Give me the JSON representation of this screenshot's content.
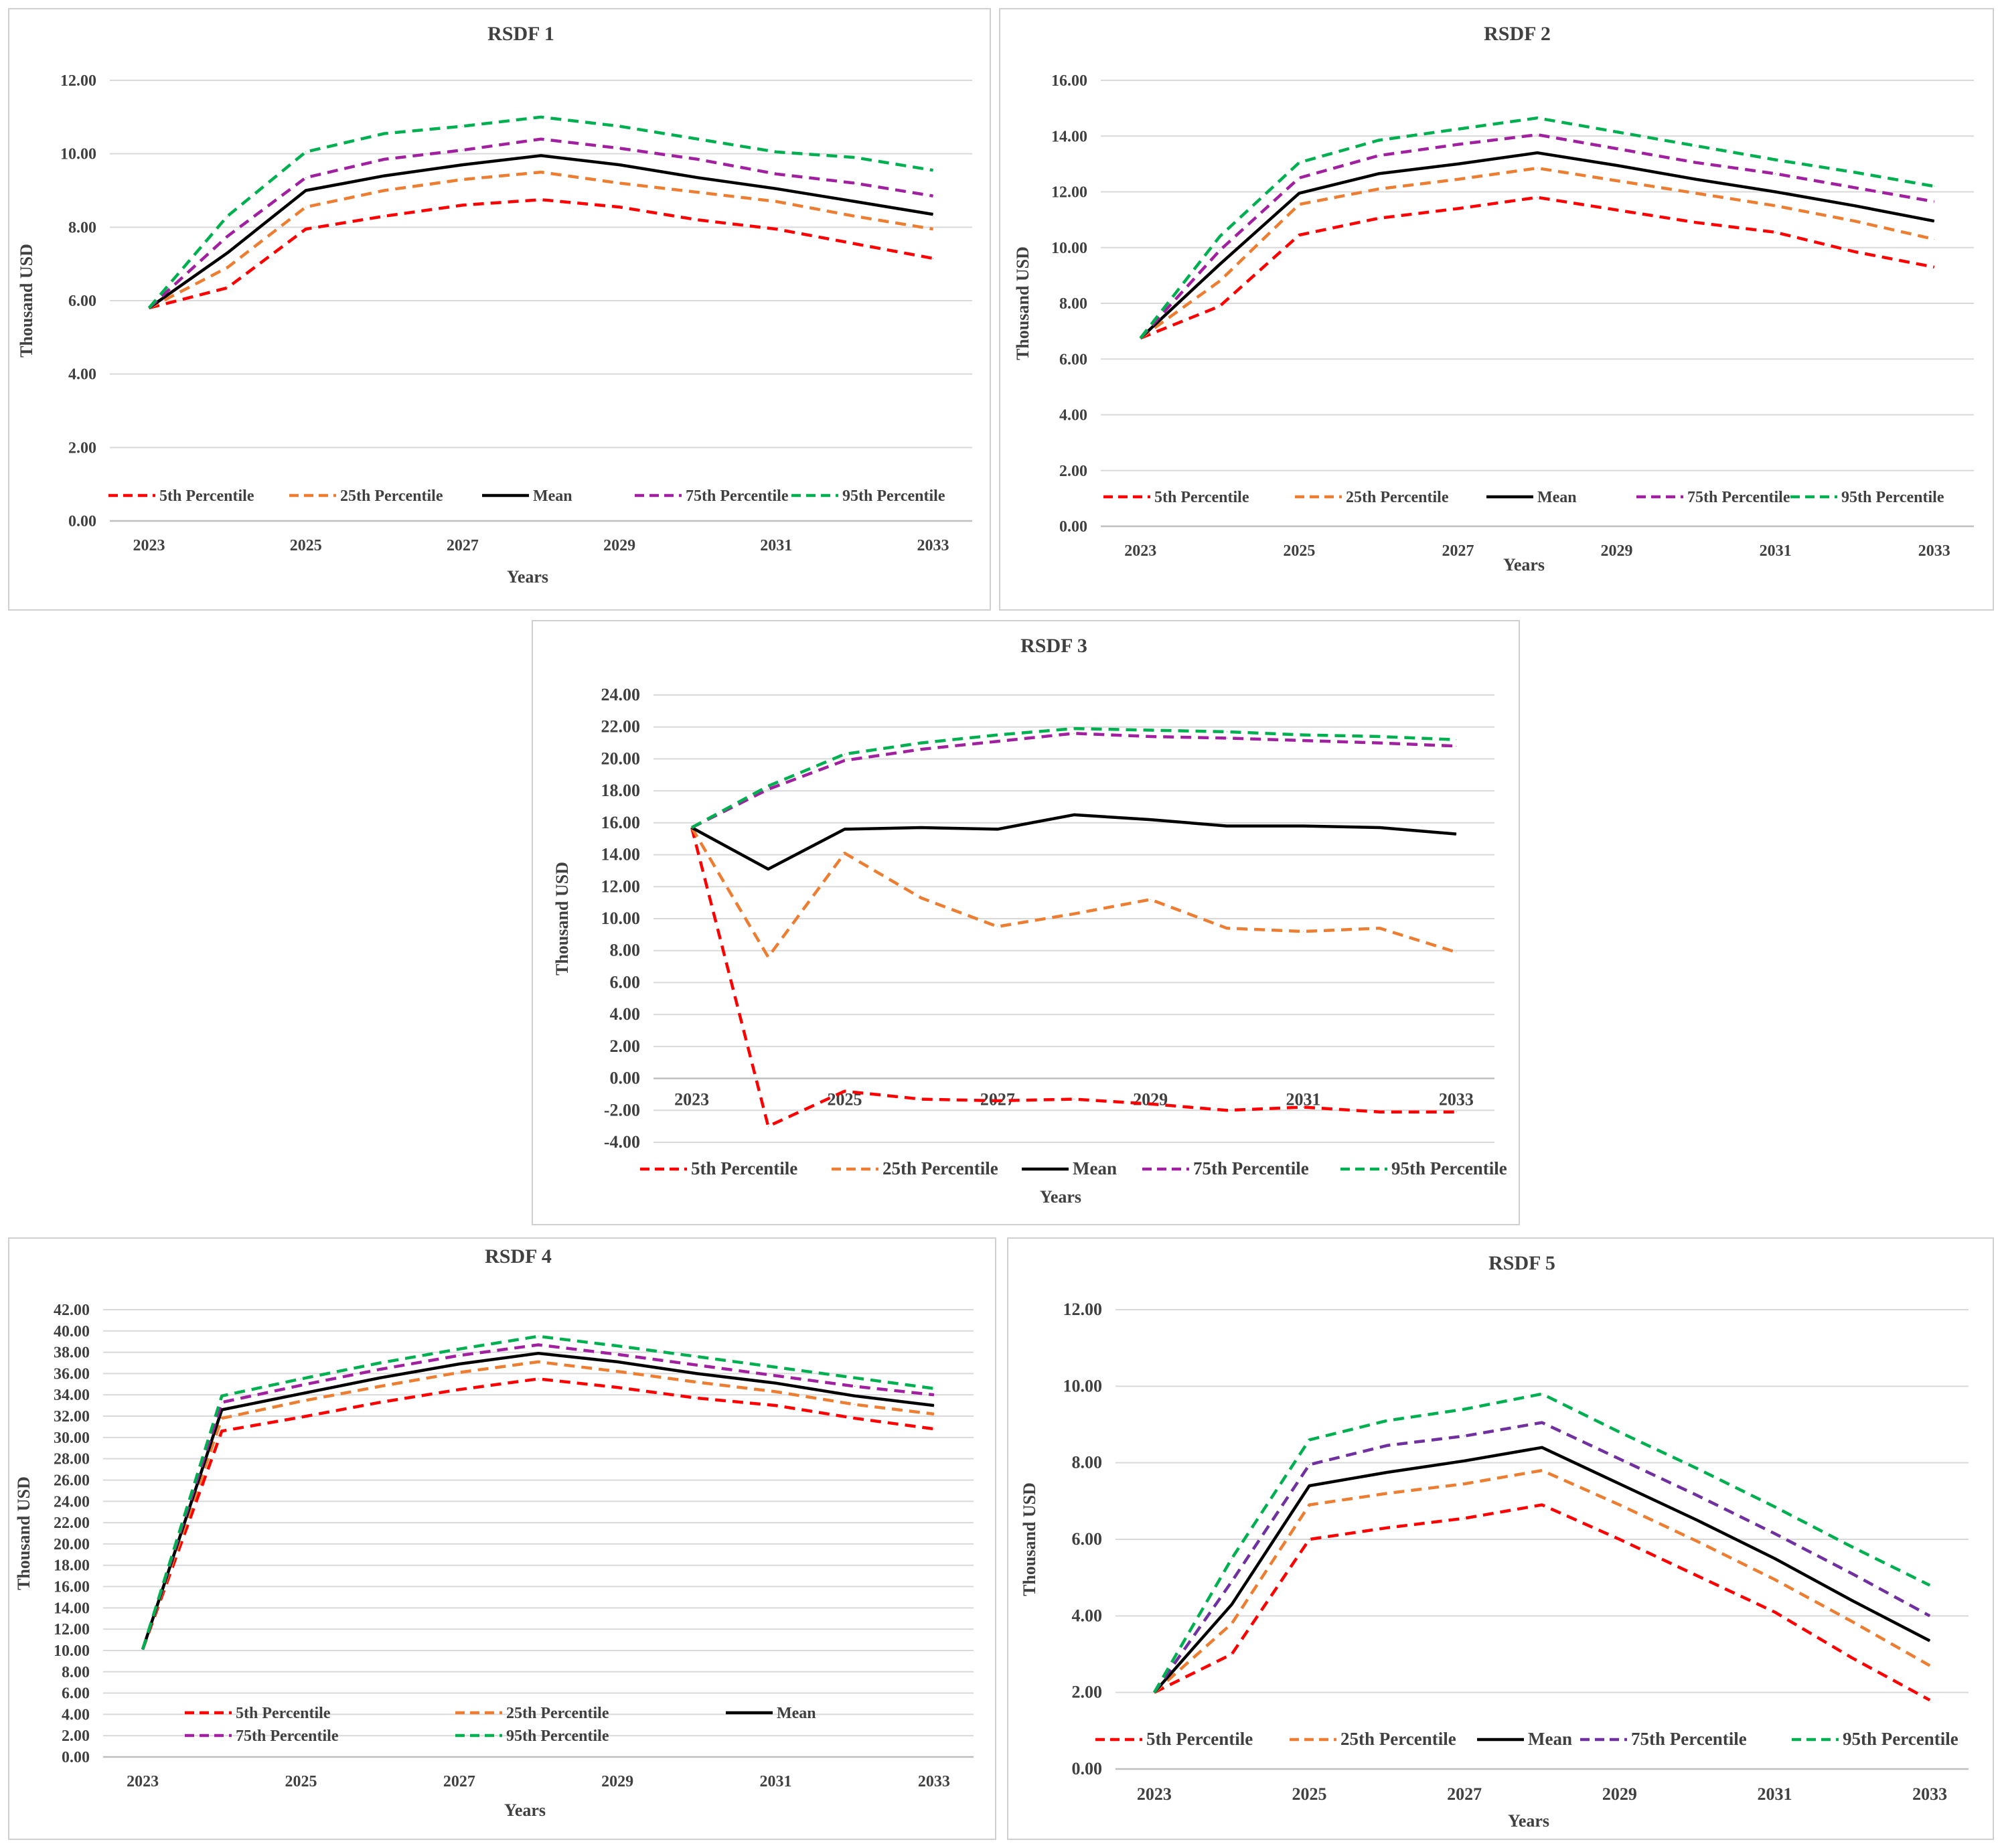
{
  "chart_data": [
    {
      "type": "line",
      "title": "RSDF 1",
      "xlabel": "Years",
      "ylabel": "Thousand USD",
      "x": [
        2023,
        2024,
        2025,
        2026,
        2027,
        2028,
        2029,
        2030,
        2031,
        2032,
        2033
      ],
      "x_tick_labels": [
        "2023",
        "2025",
        "2027",
        "2029",
        "2031",
        "2033"
      ],
      "ylim": [
        0,
        12
      ],
      "y_tick_labels": [
        "0.00",
        "2.00",
        "4.00",
        "6.00",
        "8.00",
        "10.00",
        "12.00"
      ],
      "legend_position": "bottom-inside",
      "series": [
        {
          "name": "5th Percentile",
          "color": "#ff0000",
          "dash": "dashed",
          "values": [
            5.8,
            6.35,
            7.95,
            8.3,
            8.6,
            8.75,
            8.55,
            8.2,
            7.95,
            7.55,
            7.15
          ]
        },
        {
          "name": "25th Percentile",
          "color": "#ed7d31",
          "dash": "dashed",
          "values": [
            5.8,
            6.9,
            8.55,
            9.0,
            9.3,
            9.5,
            9.2,
            8.95,
            8.7,
            8.3,
            7.95
          ]
        },
        {
          "name": "Mean",
          "color": "#000000",
          "dash": "solid",
          "values": [
            5.8,
            7.3,
            9.0,
            9.4,
            9.7,
            9.95,
            9.7,
            9.35,
            9.05,
            8.7,
            8.35
          ]
        },
        {
          "name": "75th Percentile",
          "color": "#a020a0",
          "dash": "dashed",
          "values": [
            5.8,
            7.75,
            9.35,
            9.85,
            10.1,
            10.4,
            10.15,
            9.85,
            9.45,
            9.2,
            8.85
          ]
        },
        {
          "name": "95th Percentile",
          "color": "#00b050",
          "dash": "dashed",
          "values": [
            5.8,
            8.3,
            10.05,
            10.55,
            10.75,
            11.0,
            10.75,
            10.4,
            10.05,
            9.9,
            9.55
          ]
        }
      ]
    },
    {
      "type": "line",
      "title": "RSDF 2",
      "xlabel": "Years",
      "ylabel": "Thousand USD",
      "x": [
        2023,
        2024,
        2025,
        2026,
        2027,
        2028,
        2029,
        2030,
        2031,
        2032,
        2033
      ],
      "x_tick_labels": [
        "2023",
        "2025",
        "2027",
        "2029",
        "2031",
        "2033"
      ],
      "ylim": [
        0,
        16
      ],
      "y_tick_labels": [
        "0.00",
        "2.00",
        "4.00",
        "6.00",
        "8.00",
        "10.00",
        "12.00",
        "14.00",
        "16.00"
      ],
      "legend_position": "bottom-inside",
      "series": [
        {
          "name": "5th Percentile",
          "color": "#ff0000",
          "dash": "dashed",
          "values": [
            6.75,
            7.9,
            10.45,
            11.05,
            11.4,
            11.8,
            11.35,
            10.9,
            10.55,
            9.85,
            9.3
          ]
        },
        {
          "name": "25th Percentile",
          "color": "#ed7d31",
          "dash": "dashed",
          "values": [
            6.75,
            8.8,
            11.55,
            12.1,
            12.45,
            12.85,
            12.4,
            11.95,
            11.5,
            10.95,
            10.3
          ]
        },
        {
          "name": "Mean",
          "color": "#000000",
          "dash": "solid",
          "values": [
            6.75,
            9.4,
            11.95,
            12.65,
            13.0,
            13.4,
            12.95,
            12.45,
            12.0,
            11.5,
            10.95
          ]
        },
        {
          "name": "75th Percentile",
          "color": "#a020a0",
          "dash": "dashed",
          "values": [
            6.75,
            9.9,
            12.5,
            13.3,
            13.7,
            14.05,
            13.55,
            13.05,
            12.65,
            12.15,
            11.65
          ]
        },
        {
          "name": "95th Percentile",
          "color": "#00b050",
          "dash": "dashed",
          "values": [
            6.75,
            10.4,
            13.05,
            13.85,
            14.25,
            14.65,
            14.15,
            13.65,
            13.15,
            12.7,
            12.2
          ]
        }
      ]
    },
    {
      "type": "line",
      "title": "RSDF 3",
      "xlabel": "Years",
      "ylabel": "Thousand USD",
      "x": [
        2023,
        2024,
        2025,
        2026,
        2027,
        2028,
        2029,
        2030,
        2031,
        2032,
        2033
      ],
      "x_tick_labels": [
        "2023",
        "2025",
        "2027",
        "2029",
        "2031",
        "2033"
      ],
      "ylim": [
        -4,
        24
      ],
      "y_tick_labels": [
        "-4.00",
        "-2.00",
        "0.00",
        "2.00",
        "4.00",
        "6.00",
        "8.00",
        "10.00",
        "12.00",
        "14.00",
        "16.00",
        "18.00",
        "20.00",
        "22.00",
        "24.00"
      ],
      "legend_position": "bottom",
      "series": [
        {
          "name": "5th Percentile",
          "color": "#ff0000",
          "dash": "dashed",
          "values": [
            15.7,
            -3.0,
            -0.8,
            -1.3,
            -1.4,
            -1.3,
            -1.6,
            -2.0,
            -1.8,
            -2.1,
            -2.1
          ]
        },
        {
          "name": "25th Percentile",
          "color": "#ed7d31",
          "dash": "dashed",
          "values": [
            15.7,
            7.6,
            14.1,
            11.3,
            9.5,
            10.3,
            11.2,
            9.4,
            9.2,
            9.4,
            7.9
          ]
        },
        {
          "name": "Mean",
          "color": "#000000",
          "dash": "solid",
          "values": [
            15.7,
            13.1,
            15.6,
            15.7,
            15.6,
            16.5,
            16.2,
            15.8,
            15.8,
            15.7,
            15.3
          ]
        },
        {
          "name": "75th Percentile",
          "color": "#a020a0",
          "dash": "dashed",
          "values": [
            15.7,
            18.1,
            19.9,
            20.6,
            21.1,
            21.6,
            21.4,
            21.3,
            21.15,
            21.0,
            20.8
          ]
        },
        {
          "name": "95th Percentile",
          "color": "#00b050",
          "dash": "dashed",
          "values": [
            15.7,
            18.3,
            20.3,
            21.0,
            21.5,
            21.9,
            21.8,
            21.7,
            21.5,
            21.4,
            21.2
          ]
        }
      ]
    },
    {
      "type": "line",
      "title": "RSDF 4",
      "xlabel": "Years",
      "ylabel": "Thousand USD",
      "x": [
        2023,
        2024,
        2025,
        2026,
        2027,
        2028,
        2029,
        2030,
        2031,
        2032,
        2033
      ],
      "x_tick_labels": [
        "2023",
        "2025",
        "2027",
        "2029",
        "2031",
        "2033"
      ],
      "ylim": [
        0,
        42
      ],
      "y_tick_labels": [
        "0.00",
        "2.00",
        "4.00",
        "6.00",
        "8.00",
        "10.00",
        "12.00",
        "14.00",
        "16.00",
        "18.00",
        "20.00",
        "22.00",
        "24.00",
        "26.00",
        "28.00",
        "30.00",
        "32.00",
        "34.00",
        "36.00",
        "38.00",
        "40.00",
        "42.00"
      ],
      "legend_position": "bottom-inside",
      "series": [
        {
          "name": "5th Percentile",
          "color": "#ff0000",
          "dash": "dashed",
          "values": [
            10.1,
            30.6,
            31.9,
            33.3,
            34.5,
            35.5,
            34.7,
            33.7,
            33.0,
            31.8,
            30.8
          ]
        },
        {
          "name": "25th Percentile",
          "color": "#ed7d31",
          "dash": "dashed",
          "values": [
            10.1,
            31.8,
            33.4,
            34.8,
            36.1,
            37.1,
            36.2,
            35.2,
            34.3,
            33.1,
            32.2
          ]
        },
        {
          "name": "Mean",
          "color": "#000000",
          "dash": "solid",
          "values": [
            10.1,
            32.6,
            34.1,
            35.6,
            36.9,
            37.9,
            37.1,
            36.0,
            35.1,
            33.9,
            33.0
          ]
        },
        {
          "name": "75th Percentile",
          "color": "#a020a0",
          "dash": "dashed",
          "values": [
            10.1,
            33.3,
            34.9,
            36.4,
            37.7,
            38.7,
            37.8,
            36.8,
            35.8,
            34.8,
            34.0
          ]
        },
        {
          "name": "95th Percentile",
          "color": "#00b050",
          "dash": "dashed",
          "values": [
            10.1,
            33.9,
            35.5,
            37.0,
            38.3,
            39.5,
            38.6,
            37.6,
            36.6,
            35.6,
            34.6
          ]
        }
      ]
    },
    {
      "type": "line",
      "title": "RSDF 5",
      "xlabel": "Years",
      "ylabel": "Thousand USD",
      "x": [
        2023,
        2024,
        2025,
        2026,
        2027,
        2028,
        2029,
        2030,
        2031,
        2032,
        2033
      ],
      "x_tick_labels": [
        "2023",
        "2025",
        "2027",
        "2029",
        "2031",
        "2033"
      ],
      "ylim": [
        0,
        12
      ],
      "y_tick_labels": [
        "0.00",
        "2.00",
        "4.00",
        "6.00",
        "8.00",
        "10.00",
        "12.00"
      ],
      "legend_position": "bottom-inside",
      "series": [
        {
          "name": "5th Percentile",
          "color": "#ff0000",
          "dash": "dashed",
          "values": [
            2.0,
            3.0,
            6.0,
            6.3,
            6.55,
            6.9,
            6.0,
            5.05,
            4.1,
            2.9,
            1.8
          ]
        },
        {
          "name": "25th Percentile",
          "color": "#ed7d31",
          "dash": "dashed",
          "values": [
            2.0,
            3.8,
            6.9,
            7.2,
            7.45,
            7.8,
            6.9,
            5.95,
            4.95,
            3.85,
            2.7
          ]
        },
        {
          "name": "Mean",
          "color": "#000000",
          "dash": "solid",
          "values": [
            2.0,
            4.3,
            7.4,
            7.75,
            8.05,
            8.4,
            7.45,
            6.5,
            5.5,
            4.4,
            3.35
          ]
        },
        {
          "name": "75th Percentile",
          "color": "#7030a0",
          "dash": "dashed",
          "values": [
            2.0,
            4.9,
            7.95,
            8.45,
            8.7,
            9.05,
            8.1,
            7.15,
            6.15,
            5.1,
            4.0
          ]
        },
        {
          "name": "95th Percentile",
          "color": "#00b050",
          "dash": "dashed",
          "values": [
            2.0,
            5.5,
            8.6,
            9.1,
            9.4,
            9.8,
            8.8,
            7.85,
            6.85,
            5.8,
            4.8
          ]
        }
      ]
    }
  ]
}
